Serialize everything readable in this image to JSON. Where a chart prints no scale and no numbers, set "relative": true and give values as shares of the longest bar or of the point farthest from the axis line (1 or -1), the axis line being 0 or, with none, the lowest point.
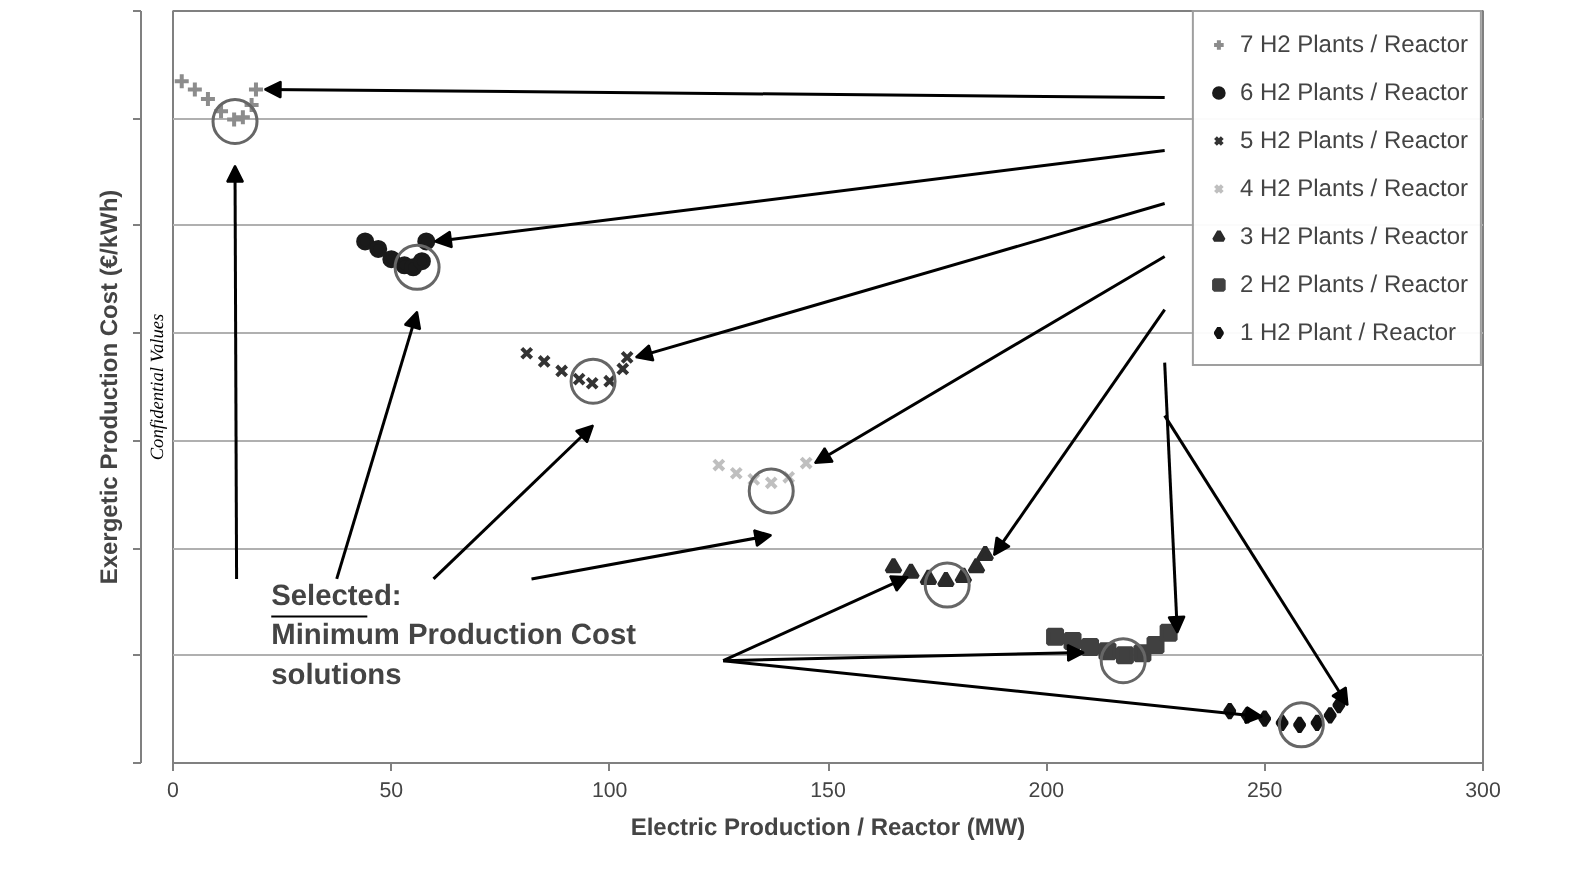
{
  "chart_data": {
    "type": "scatter",
    "relative": true,
    "xlabel": "Electric Production / Reactor (MW)",
    "ylabel": "Exergetic Production Cost (€/kWh)",
    "xlim": [
      0,
      300
    ],
    "xticks": [
      0,
      50,
      100,
      150,
      200,
      250,
      300
    ],
    "grid": "y",
    "legend": "top right",
    "annotations": [
      "Selected:",
      "Minimum Production Cost\nsolutions",
      "Confidential Values"
    ],
    "series": [
      {
        "name": "7 H2 Plants / Reactor",
        "color": "#8c8c8c",
        "marker": "cross",
        "x": [
          2,
          5,
          8,
          11,
          14,
          16,
          18,
          19
        ],
        "values": [
          1.0,
          0.988,
          0.974,
          0.956,
          0.944,
          0.947,
          0.965,
          0.988
        ]
      },
      {
        "name": "6 H2 Plants / Reactor",
        "color": "#1a1a1a",
        "marker": "circle",
        "x": [
          44,
          47,
          50,
          53,
          55,
          57,
          58
        ],
        "values": [
          0.765,
          0.754,
          0.739,
          0.73,
          0.727,
          0.736,
          0.765
        ]
      },
      {
        "name": "5 H2 Plants / Reactor",
        "color": "#333333",
        "marker": "x",
        "x": [
          81,
          85,
          89,
          93,
          96,
          100,
          103,
          104
        ],
        "values": [
          0.601,
          0.589,
          0.575,
          0.563,
          0.557,
          0.56,
          0.578,
          0.595
        ]
      },
      {
        "name": "4 H2 Plants / Reactor",
        "color": "#bfbfbf",
        "marker": "x",
        "x": [
          125,
          129,
          133,
          137,
          141,
          145
        ],
        "values": [
          0.437,
          0.425,
          0.416,
          0.411,
          0.419,
          0.44
        ]
      },
      {
        "name": "3 H2 Plants / Reactor",
        "color": "#2a2a2a",
        "marker": "triangle",
        "x": [
          165,
          169,
          173,
          177,
          181,
          184,
          186
        ],
        "values": [
          0.287,
          0.279,
          0.27,
          0.267,
          0.273,
          0.287,
          0.305
        ]
      },
      {
        "name": "2 H2 Plants / Reactor",
        "color": "#404040",
        "marker": "square",
        "x": [
          202,
          206,
          210,
          214,
          218,
          222,
          225,
          228
        ],
        "values": [
          0.185,
          0.179,
          0.17,
          0.164,
          0.158,
          0.161,
          0.173,
          0.191
        ]
      },
      {
        "name": "1 H2 Plant / Reactor",
        "color": "#111111",
        "marker": "diamond",
        "x": [
          242,
          246,
          250,
          254,
          258,
          262,
          265,
          267
        ],
        "values": [
          0.076,
          0.07,
          0.065,
          0.059,
          0.056,
          0.059,
          0.07,
          0.085
        ]
      },
      {
        "color": "#666666",
        "marker": "circle",
        "x": [
          14.2,
          55.9,
          96.2,
          137,
          177.3,
          217.6,
          258.4
        ],
        "values": [
          0.941,
          0.727,
          0.56,
          0.399,
          0.261,
          0.15,
          0.056
        ]
      }
    ]
  }
}
